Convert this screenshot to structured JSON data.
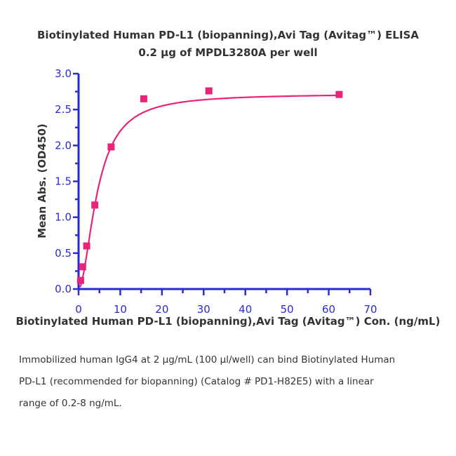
{
  "chart_data": {
    "type": "scatter",
    "title": "Biotinylated Human PD-L1 (biopanning),Avi Tag (Avitag™) ELISA",
    "subtitle": "0.2 µg of MPDL3280A per well",
    "xlabel": "Biotinylated Human PD-L1 (biopanning),Avi Tag (Avitag™) Con. (ng/mL)",
    "ylabel": "Mean Abs. (OD450)",
    "xlim": [
      0,
      70
    ],
    "ylim": [
      0,
      3.0
    ],
    "x_ticks": [
      "0",
      "10",
      "20",
      "30",
      "40",
      "50",
      "60",
      "70"
    ],
    "y_ticks": [
      "0.0",
      "0.5",
      "1.0",
      "1.5",
      "2.0",
      "2.5",
      "3.0"
    ],
    "grid": false,
    "fit_curve": true,
    "series": [
      {
        "x": [
          0.49,
          0.98,
          1.95,
          3.9,
          7.81,
          15.63,
          31.25,
          62.5
        ],
        "y": [
          0.12,
          0.31,
          0.6,
          1.17,
          1.98,
          2.65,
          2.76,
          2.71
        ]
      }
    ],
    "colors": {
      "axis": "#2a2ad6",
      "series": "#e8237a"
    }
  },
  "caption": {
    "lines": [
      "Immobilized human IgG4 at 2 µg/mL (100 µl/well) can bind Biotinylated Human",
      "PD-L1 (recommended for biopanning) (Catalog # PD1-H82E5) with a linear",
      "range of 0.2-8 ng/mL."
    ]
  }
}
